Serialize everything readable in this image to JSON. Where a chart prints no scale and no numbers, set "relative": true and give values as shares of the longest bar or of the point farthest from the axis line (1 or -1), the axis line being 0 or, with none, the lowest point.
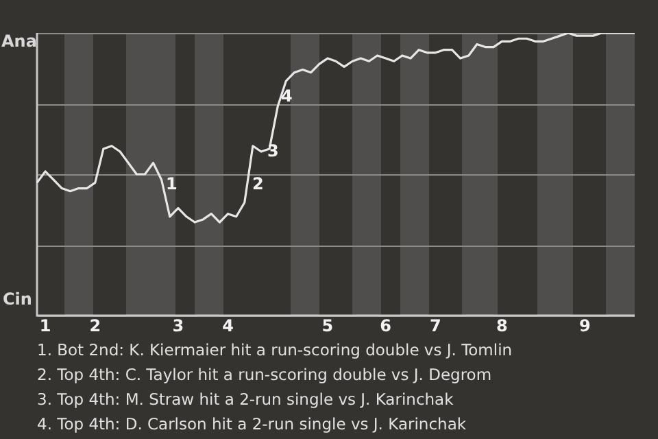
{
  "chart_data": {
    "type": "line",
    "relative": true,
    "categories": [
      null,
      "1",
      null,
      null,
      null,
      null,
      null,
      "2",
      null,
      null,
      null,
      null,
      null,
      null,
      null,
      null,
      null,
      "3",
      null,
      null,
      null,
      null,
      null,
      "4",
      null,
      null,
      null,
      null,
      null,
      null,
      null,
      null,
      null,
      null,
      null,
      "5",
      null,
      null,
      null,
      null,
      null,
      null,
      "6",
      null,
      null,
      null,
      null,
      null,
      "7",
      null,
      null,
      null,
      null,
      null,
      null,
      null,
      "8",
      null,
      null,
      null,
      null,
      null,
      null,
      null,
      null,
      null,
      "9",
      null,
      null,
      null,
      null,
      null,
      null
    ],
    "series": [
      {
        "color": "#e6e6e6",
        "values": [
          0.47,
          0.51,
          0.48,
          0.45,
          0.44,
          0.45,
          0.45,
          0.47,
          0.59,
          0.6,
          0.58,
          0.54,
          0.5,
          0.5,
          0.54,
          0.48,
          0.35,
          0.38,
          0.35,
          0.33,
          0.34,
          0.36,
          0.33,
          0.36,
          0.35,
          0.4,
          0.6,
          0.58,
          0.59,
          0.74,
          0.83,
          0.86,
          0.87,
          0.86,
          0.89,
          0.91,
          0.9,
          0.88,
          0.9,
          0.91,
          0.9,
          0.92,
          0.91,
          0.9,
          0.92,
          0.91,
          0.94,
          0.93,
          0.93,
          0.94,
          0.94,
          0.91,
          0.92,
          0.96,
          0.95,
          0.95,
          0.97,
          0.97,
          0.98,
          0.98,
          0.97,
          0.97,
          0.98,
          0.99,
          1,
          0.99,
          0.99,
          0.99,
          1,
          1,
          1,
          1,
          1
        ]
      }
    ],
    "grid": "y",
    "marker": "none",
    "annotations": [
      "Ana",
      "Cin",
      "1",
      "2",
      "3",
      "4",
      "1. Bot 2nd: K. Kiermaier hit a run-scoring double vs J. Tomlin",
      "2. Top 4th: C. Taylor hit a run-scoring double vs J. Degrom",
      "3. Top 4th: M. Straw hit a 2-run single vs J. Karinchak",
      "4. Top 4th: D. Carlson hit a 2-run single vs J. Karinchak"
    ]
  }
}
